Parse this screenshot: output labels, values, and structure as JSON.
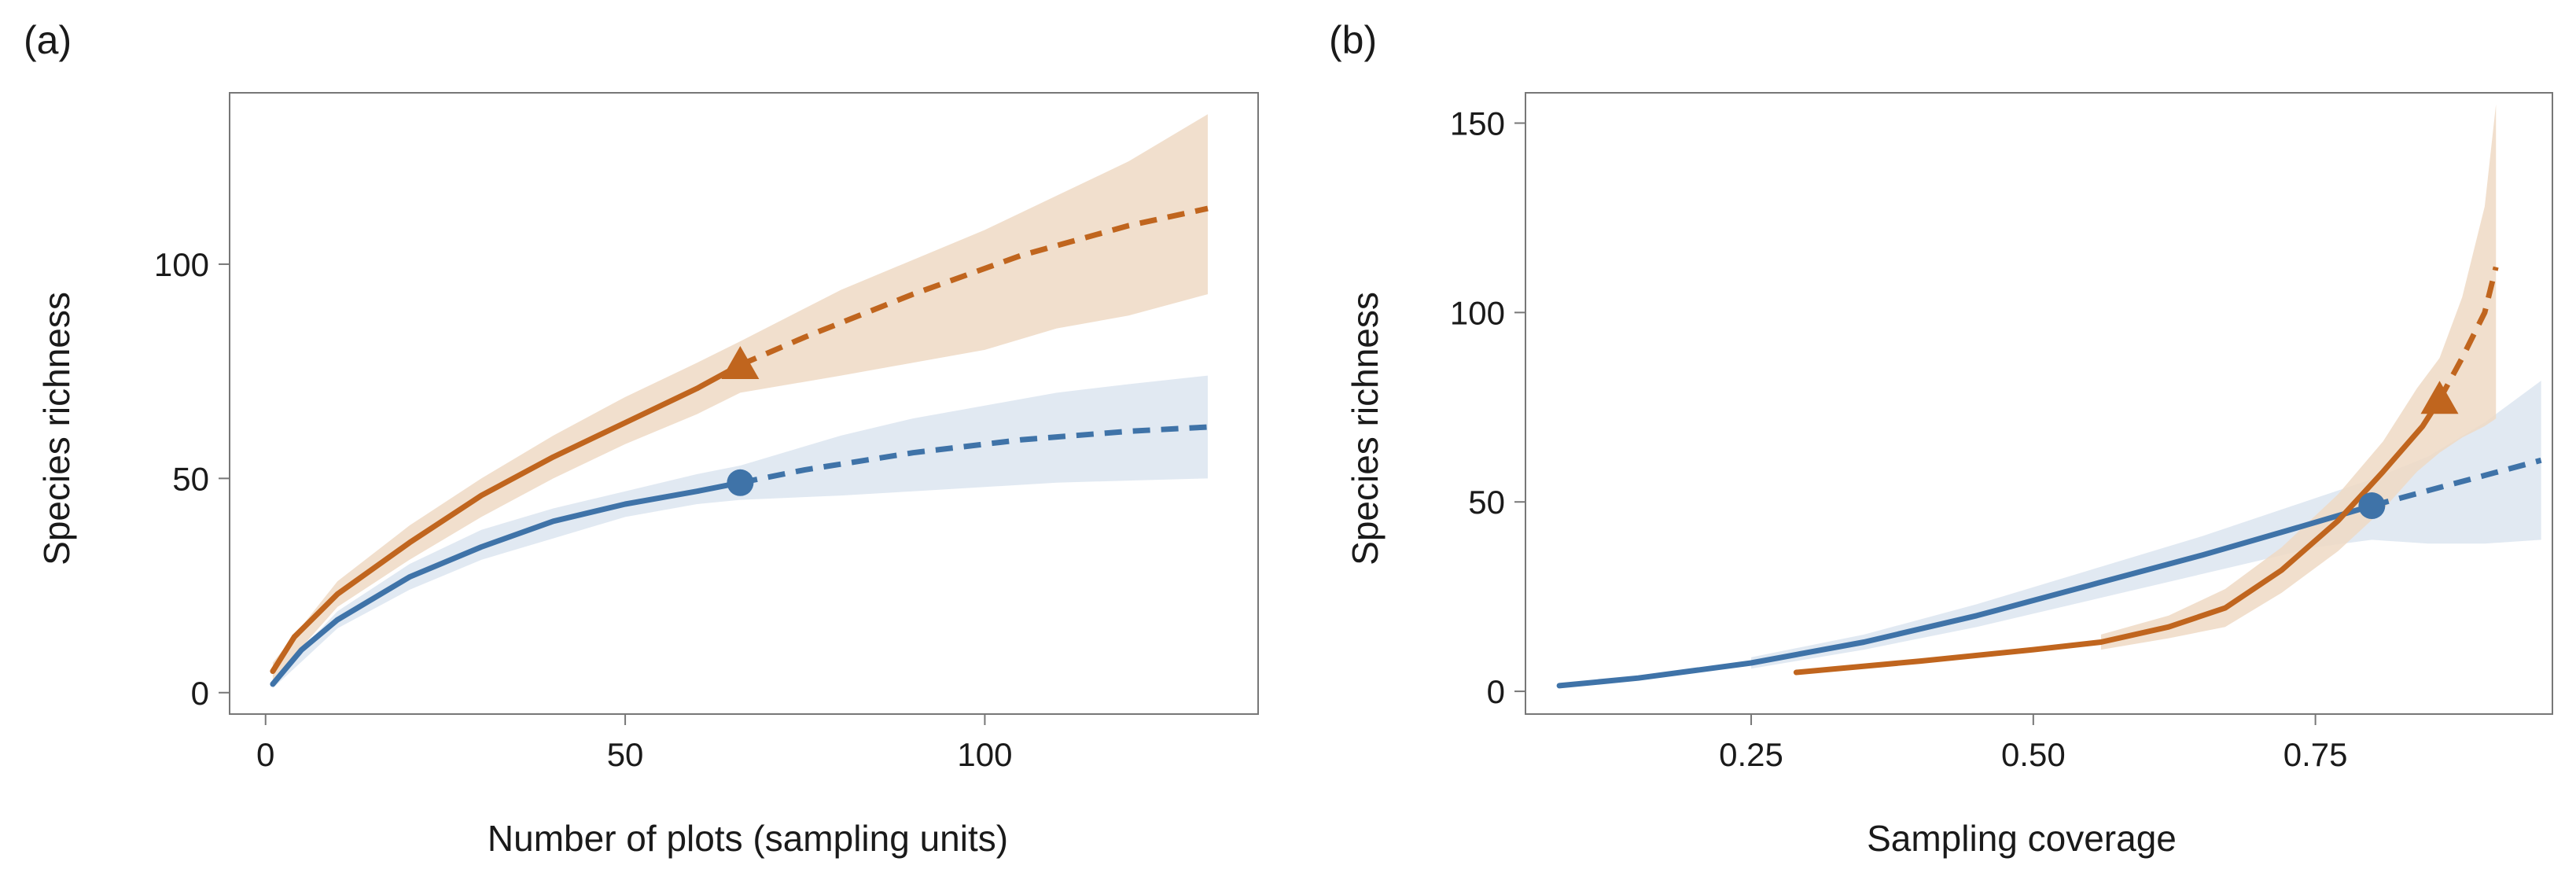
{
  "colors": {
    "orange": "#C0651E",
    "orange_band": "#EED9C4",
    "blue": "#3F73A8",
    "blue_band": "#DCE5F0",
    "axis": "#777777",
    "text": "#1a1a1a"
  },
  "chart_data": [
    {
      "panel_label": "(a)",
      "type": "line",
      "xlabel": "Number of plots (sampling units)",
      "ylabel": "Species richness",
      "xlim": [
        -5,
        138
      ],
      "ylim": [
        -5,
        140
      ],
      "xticks": [
        0,
        50,
        100
      ],
      "xtick_labels": [
        "0",
        "50",
        "100"
      ],
      "yticks": [
        0,
        50,
        100
      ],
      "ytick_labels": [
        "0",
        "50",
        "100"
      ],
      "grid": false,
      "series": [
        {
          "name": "orange",
          "color_key": "orange",
          "marker": "triangle",
          "interpolated": [
            [
              1,
              5
            ],
            [
              4,
              13
            ],
            [
              10,
              23
            ],
            [
              20,
              35
            ],
            [
              30,
              46
            ],
            [
              40,
              55
            ],
            [
              50,
              63
            ],
            [
              60,
              71
            ],
            [
              66,
              76.5
            ]
          ],
          "extrapolated": [
            [
              66,
              76.5
            ],
            [
              75,
              83
            ],
            [
              90,
              93
            ],
            [
              105,
              102
            ],
            [
              120,
              109
            ],
            [
              131,
              113
            ]
          ],
          "band_upper": [
            [
              1,
              7
            ],
            [
              10,
              26
            ],
            [
              20,
              39
            ],
            [
              30,
              50
            ],
            [
              40,
              60
            ],
            [
              50,
              69
            ],
            [
              60,
              77
            ],
            [
              66,
              82
            ],
            [
              80,
              94
            ],
            [
              90,
              101
            ],
            [
              100,
              108
            ],
            [
              110,
              116
            ],
            [
              120,
              124
            ],
            [
              131,
              135
            ]
          ],
          "band_lower": [
            [
              1,
              3
            ],
            [
              10,
              20
            ],
            [
              20,
              31
            ],
            [
              30,
              41
            ],
            [
              40,
              50
            ],
            [
              50,
              58
            ],
            [
              60,
              65
            ],
            [
              66,
              70
            ],
            [
              80,
              74
            ],
            [
              90,
              77
            ],
            [
              100,
              80
            ],
            [
              110,
              85
            ],
            [
              120,
              88
            ],
            [
              131,
              93
            ]
          ],
          "marker_point": [
            66,
            76.5
          ]
        },
        {
          "name": "blue",
          "color_key": "blue",
          "marker": "circle",
          "interpolated": [
            [
              1,
              2
            ],
            [
              5,
              10
            ],
            [
              10,
              17
            ],
            [
              20,
              27
            ],
            [
              30,
              34
            ],
            [
              40,
              40
            ],
            [
              50,
              44
            ],
            [
              60,
              47
            ],
            [
              66,
              49
            ]
          ],
          "extrapolated": [
            [
              66,
              49
            ],
            [
              75,
              52
            ],
            [
              90,
              56
            ],
            [
              105,
              59
            ],
            [
              120,
              61
            ],
            [
              131,
              62
            ]
          ],
          "band_upper": [
            [
              1,
              3
            ],
            [
              10,
              19
            ],
            [
              20,
              30
            ],
            [
              30,
              38
            ],
            [
              40,
              43
            ],
            [
              50,
              47
            ],
            [
              60,
              51
            ],
            [
              66,
              53
            ],
            [
              80,
              60
            ],
            [
              90,
              64
            ],
            [
              100,
              67
            ],
            [
              110,
              70
            ],
            [
              120,
              72
            ],
            [
              131,
              74
            ]
          ],
          "band_lower": [
            [
              1,
              1
            ],
            [
              10,
              15
            ],
            [
              20,
              24
            ],
            [
              30,
              31
            ],
            [
              40,
              36
            ],
            [
              50,
              41
            ],
            [
              60,
              44
            ],
            [
              66,
              45
            ],
            [
              80,
              46
            ],
            [
              90,
              47
            ],
            [
              100,
              48
            ],
            [
              110,
              49
            ],
            [
              120,
              49.5
            ],
            [
              131,
              50
            ]
          ],
          "marker_point": [
            66,
            49
          ]
        }
      ]
    },
    {
      "panel_label": "(b)",
      "type": "line",
      "xlabel": "Sampling coverage",
      "ylabel": "Species richness",
      "xlim": [
        0.05,
        0.96
      ],
      "ylim": [
        -6,
        158
      ],
      "xticks": [
        0.25,
        0.5,
        0.75
      ],
      "xtick_labels": [
        "0.25",
        "0.50",
        "0.75"
      ],
      "yticks": [
        0,
        50,
        100,
        150
      ],
      "ytick_labels": [
        "0",
        "50",
        "100",
        "150"
      ],
      "grid": false,
      "series": [
        {
          "name": "blue",
          "color_key": "blue",
          "marker": "circle",
          "interpolated": [
            [
              0.08,
              1.5
            ],
            [
              0.15,
              3.5
            ],
            [
              0.25,
              7.5
            ],
            [
              0.35,
              13
            ],
            [
              0.45,
              20
            ],
            [
              0.55,
              28
            ],
            [
              0.65,
              36
            ],
            [
              0.72,
              42
            ],
            [
              0.8,
              49
            ]
          ],
          "extrapolated": [
            [
              0.8,
              49
            ],
            [
              0.85,
              53
            ],
            [
              0.9,
              57
            ],
            [
              0.95,
              61
            ]
          ],
          "band_upper": [
            [
              0.25,
              9
            ],
            [
              0.35,
              15
            ],
            [
              0.45,
              23
            ],
            [
              0.55,
              32
            ],
            [
              0.65,
              41
            ],
            [
              0.75,
              51
            ],
            [
              0.8,
              56
            ],
            [
              0.85,
              62
            ],
            [
              0.9,
              71
            ],
            [
              0.95,
              82
            ]
          ],
          "band_lower": [
            [
              0.25,
              6
            ],
            [
              0.35,
              11
            ],
            [
              0.45,
              17
            ],
            [
              0.55,
              24
            ],
            [
              0.65,
              31
            ],
            [
              0.75,
              38
            ],
            [
              0.8,
              40
            ],
            [
              0.85,
              39
            ],
            [
              0.9,
              39
            ],
            [
              0.95,
              40
            ]
          ],
          "marker_point": [
            0.8,
            49
          ]
        },
        {
          "name": "orange",
          "color_key": "orange",
          "marker": "triangle",
          "interpolated": [
            [
              0.29,
              5
            ],
            [
              0.4,
              8
            ],
            [
              0.5,
              11
            ],
            [
              0.56,
              13
            ],
            [
              0.62,
              17
            ],
            [
              0.67,
              22
            ],
            [
              0.72,
              32
            ],
            [
              0.77,
              45
            ],
            [
              0.81,
              58
            ],
            [
              0.845,
              70
            ],
            [
              0.86,
              77
            ]
          ],
          "extrapolated": [
            [
              0.86,
              77
            ],
            [
              0.88,
              88
            ],
            [
              0.9,
              100
            ],
            [
              0.91,
              112
            ]
          ],
          "band_upper": [
            [
              0.56,
              15
            ],
            [
              0.62,
              20
            ],
            [
              0.67,
              27
            ],
            [
              0.72,
              38
            ],
            [
              0.77,
              52
            ],
            [
              0.81,
              66
            ],
            [
              0.84,
              80
            ],
            [
              0.86,
              88
            ],
            [
              0.88,
              104
            ],
            [
              0.9,
              128
            ],
            [
              0.91,
              155
            ]
          ],
          "band_lower": [
            [
              0.56,
              11
            ],
            [
              0.62,
              14
            ],
            [
              0.67,
              17
            ],
            [
              0.72,
              26
            ],
            [
              0.77,
              37
            ],
            [
              0.81,
              48
            ],
            [
              0.84,
              58
            ],
            [
              0.86,
              63
            ],
            [
              0.88,
              67
            ],
            [
              0.9,
              70
            ],
            [
              0.91,
              72
            ]
          ],
          "marker_point": [
            0.86,
            77
          ]
        }
      ]
    }
  ]
}
